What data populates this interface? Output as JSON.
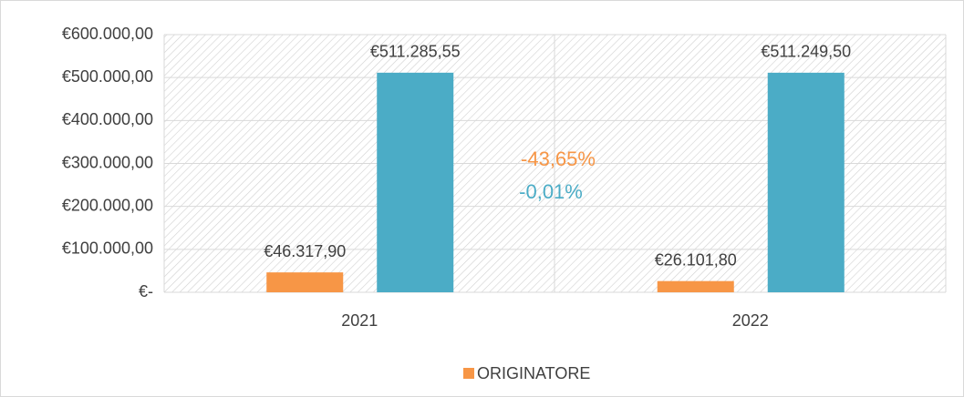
{
  "chart_data": {
    "type": "bar",
    "categories": [
      "2021",
      "2022"
    ],
    "series": [
      {
        "name": "ORIGINATORE",
        "color": "#f79646",
        "values": [
          46317.9,
          26101.8
        ],
        "value_labels": [
          "€46.317,90",
          "€26.101,80"
        ]
      },
      {
        "color": "#4bacc6",
        "values": [
          511285.55,
          511249.5
        ],
        "value_labels": [
          "€511.285,55",
          "€511.249,50"
        ]
      }
    ],
    "ylim": [
      0,
      600000
    ],
    "yticks": [
      {
        "value": 0,
        "label": "€-"
      },
      {
        "value": 100000,
        "label": "€100.000,00"
      },
      {
        "value": 200000,
        "label": "€200.000,00"
      },
      {
        "value": 300000,
        "label": "€300.000,00"
      },
      {
        "value": 400000,
        "label": "€400.000,00"
      },
      {
        "value": 500000,
        "label": "€500.000,00"
      },
      {
        "value": 600000,
        "label": "€600.000,00"
      }
    ],
    "grid": true,
    "legend": "bottom",
    "annotations": [
      {
        "text": "-43,65%",
        "color": "#f79646"
      },
      {
        "text": "-0,01%",
        "color": "#4bacc6"
      }
    ]
  }
}
